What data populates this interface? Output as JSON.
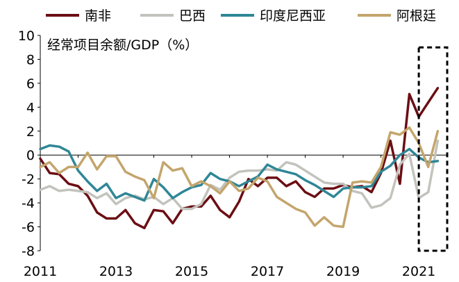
{
  "chart_data": {
    "type": "line",
    "title": "经常项目余额/GDP（%）",
    "xlabel": "",
    "ylabel": "",
    "xlim": [
      2011.0,
      2021.75
    ],
    "ylim": [
      -8,
      10
    ],
    "yticks": [
      -8,
      -6,
      -4,
      -2,
      0,
      2,
      4,
      6,
      8,
      10
    ],
    "xticks": [
      2011,
      2013,
      2015,
      2017,
      2019,
      2021
    ],
    "legend_position": "top",
    "series": [
      {
        "name": "南非",
        "color": "#6b0e14",
        "x": [
          2011.0,
          2011.25,
          2011.5,
          2011.75,
          2012.0,
          2012.25,
          2012.5,
          2012.75,
          2013.0,
          2013.25,
          2013.5,
          2013.75,
          2014.0,
          2014.25,
          2014.5,
          2014.75,
          2015.0,
          2015.25,
          2015.5,
          2015.75,
          2016.0,
          2016.25,
          2016.5,
          2016.75,
          2017.0,
          2017.25,
          2017.5,
          2017.75,
          2018.0,
          2018.25,
          2018.5,
          2018.75,
          2019.0,
          2019.25,
          2019.5,
          2019.75,
          2020.0,
          2020.25,
          2020.5,
          2020.75,
          2021.0,
          2021.25,
          2021.5
        ],
        "values": [
          -0.3,
          -1.5,
          -1.6,
          -2.4,
          -2.6,
          -3.4,
          -4.8,
          -5.3,
          -5.3,
          -4.6,
          -5.7,
          -6.1,
          -4.6,
          -4.7,
          -5.7,
          -4.5,
          -4.3,
          -4.3,
          -3.4,
          -4.6,
          -5.2,
          -3.9,
          -2.0,
          -2.6,
          -1.9,
          -1.9,
          -2.6,
          -2.2,
          -3.1,
          -3.5,
          -2.8,
          -2.8,
          -2.5,
          -2.7,
          -2.6,
          -3.1,
          -1.5,
          1.2,
          -2.4,
          5.1,
          3.2,
          4.4,
          5.6
        ]
      },
      {
        "name": "巴西",
        "color": "#c2c3bd",
        "x": [
          2011.0,
          2011.25,
          2011.5,
          2011.75,
          2012.0,
          2012.25,
          2012.5,
          2012.75,
          2013.0,
          2013.25,
          2013.5,
          2013.75,
          2014.0,
          2014.25,
          2014.5,
          2014.75,
          2015.0,
          2015.25,
          2015.5,
          2015.75,
          2016.0,
          2016.25,
          2016.5,
          2016.75,
          2017.0,
          2017.25,
          2017.5,
          2017.75,
          2018.0,
          2018.25,
          2018.5,
          2018.75,
          2019.0,
          2019.25,
          2019.5,
          2019.75,
          2020.0,
          2020.25,
          2020.5,
          2020.75,
          2021.0,
          2021.25,
          2021.5
        ],
        "values": [
          -2.9,
          -2.6,
          -3.0,
          -2.9,
          -3.0,
          -3.1,
          -3.6,
          -3.2,
          -4.1,
          -3.6,
          -3.4,
          -3.7,
          -3.5,
          -4.1,
          -3.6,
          -4.5,
          -4.5,
          -4.1,
          -2.5,
          -2.9,
          -1.9,
          -1.4,
          -1.3,
          -1.3,
          -1.2,
          -1.3,
          -0.6,
          -0.8,
          -1.3,
          -1.8,
          -2.3,
          -2.4,
          -2.4,
          -3.0,
          -3.2,
          -4.4,
          -4.2,
          -3.6,
          -0.8,
          0.1,
          -3.6,
          -3.1,
          1.2
        ]
      },
      {
        "name": "印度尼西亚",
        "color": "#2f8696",
        "x": [
          2011.0,
          2011.25,
          2011.5,
          2011.75,
          2012.0,
          2012.25,
          2012.5,
          2012.75,
          2013.0,
          2013.25,
          2013.5,
          2013.75,
          2014.0,
          2014.25,
          2014.5,
          2014.75,
          2015.0,
          2015.25,
          2015.5,
          2015.75,
          2016.0,
          2016.25,
          2016.5,
          2016.75,
          2017.0,
          2017.25,
          2017.5,
          2017.75,
          2018.0,
          2018.25,
          2018.5,
          2018.75,
          2019.0,
          2019.25,
          2019.5,
          2019.75,
          2020.0,
          2020.25,
          2020.5,
          2020.75,
          2021.0,
          2021.25,
          2021.5
        ],
        "values": [
          0.5,
          0.8,
          0.7,
          0.3,
          -1.3,
          -2.2,
          -3.0,
          -2.4,
          -3.6,
          -3.2,
          -3.5,
          -3.8,
          -2.0,
          -2.7,
          -3.6,
          -3.1,
          -2.7,
          -2.5,
          -1.5,
          -2.0,
          -2.2,
          -2.6,
          -2.2,
          -1.8,
          -0.8,
          -1.2,
          -1.4,
          -1.6,
          -2.1,
          -2.5,
          -3.0,
          -3.5,
          -2.8,
          -2.7,
          -2.7,
          -2.6,
          -1.4,
          -0.9,
          0.0,
          0.5,
          -0.2,
          -0.6,
          -0.5
        ]
      },
      {
        "name": "阿根廷",
        "color": "#c4a56c",
        "x": [
          2011.0,
          2011.25,
          2011.5,
          2011.75,
          2012.0,
          2012.25,
          2012.5,
          2012.75,
          2013.0,
          2013.25,
          2013.5,
          2013.75,
          2014.0,
          2014.25,
          2014.5,
          2014.75,
          2015.0,
          2015.25,
          2015.5,
          2015.75,
          2016.0,
          2016.25,
          2016.5,
          2016.75,
          2017.0,
          2017.25,
          2017.5,
          2017.75,
          2018.0,
          2018.25,
          2018.5,
          2018.75,
          2019.0,
          2019.25,
          2019.5,
          2019.75,
          2020.0,
          2020.25,
          2020.5,
          2020.75,
          2021.0,
          2021.25,
          2021.5
        ],
        "values": [
          -1.0,
          -0.6,
          -1.5,
          -1.0,
          -1.0,
          0.2,
          -1.2,
          -0.1,
          -0.1,
          -1.4,
          -1.8,
          -2.1,
          -3.6,
          -0.6,
          -1.3,
          -1.1,
          -2.6,
          -2.2,
          -2.6,
          -3.2,
          -2.2,
          -3.0,
          -2.8,
          -1.9,
          -2.2,
          -3.5,
          -4.0,
          -4.5,
          -4.8,
          -5.9,
          -5.2,
          -5.9,
          -6.0,
          -2.3,
          -2.2,
          -2.3,
          -1.0,
          1.9,
          1.7,
          2.3,
          1.0,
          -1.0,
          2.0
        ]
      }
    ],
    "annotations": [
      {
        "type": "dashed-box",
        "x_range": [
          2021.0,
          2021.75
        ],
        "y_range": [
          -8,
          9
        ]
      }
    ]
  }
}
